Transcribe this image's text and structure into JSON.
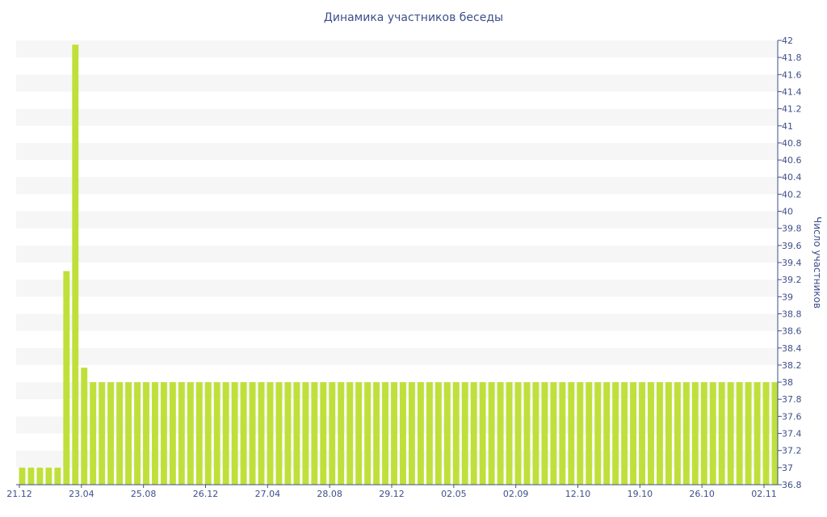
{
  "chart_data": {
    "type": "bar",
    "title": "Динамика участников беседы",
    "ylabel": "Число участников",
    "xlabel": "",
    "ylim": [
      36.8,
      42
    ],
    "y_ticks": [
      36.8,
      37,
      37.2,
      37.4,
      37.6,
      37.8,
      38,
      38.2,
      38.4,
      38.6,
      38.8,
      39,
      39.2,
      39.4,
      39.6,
      39.8,
      40,
      40.2,
      40.4,
      40.6,
      40.8,
      41,
      41.2,
      41.4,
      41.6,
      41.8,
      42
    ],
    "x_tick_labels": [
      "21.12",
      "23.04",
      "25.08",
      "26.12",
      "27.04",
      "28.08",
      "29.12",
      "02.05",
      "02.09",
      "12.10",
      "19.10",
      "26.10",
      "02.11"
    ],
    "bar_color": "#bfe03a",
    "band_color": "#f6f6f6",
    "text_color": "#3e4f8a",
    "grid": "horizontal bands",
    "y_axis_position": "right",
    "values": [
      37,
      37,
      37,
      37,
      37,
      39.3,
      41.95,
      38.17,
      38,
      38,
      38,
      38,
      38,
      38,
      38,
      38,
      38,
      38,
      38,
      38,
      38,
      38,
      38,
      38,
      38,
      38,
      38,
      38,
      38,
      38,
      38,
      38,
      38,
      38,
      38,
      38,
      38,
      38,
      38,
      38,
      38,
      38,
      38,
      38,
      38,
      38,
      38,
      38,
      38,
      38,
      38,
      38,
      38,
      38,
      38,
      38,
      38,
      38,
      38,
      38,
      38,
      38,
      38,
      38,
      38,
      38,
      38,
      38,
      38,
      38,
      38,
      38,
      38,
      38,
      38,
      38,
      38,
      38,
      38,
      38,
      38,
      38,
      38,
      38,
      38,
      38
    ]
  }
}
